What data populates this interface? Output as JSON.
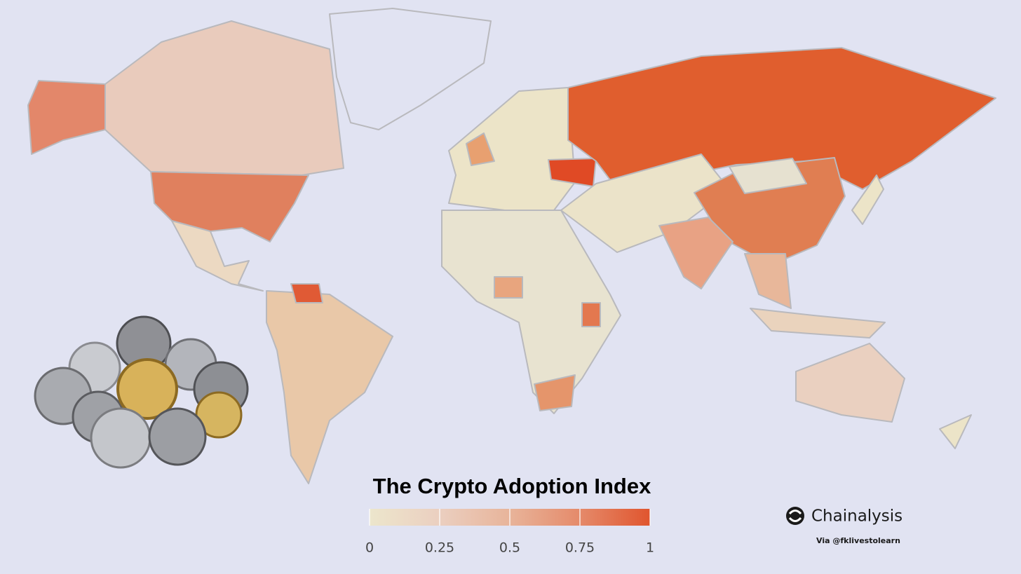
{
  "title": "The Crypto Adoption Index",
  "legend": {
    "range": [
      0,
      1
    ],
    "ticks": [
      0,
      0.25,
      0.5,
      0.75,
      1
    ],
    "colors": [
      "#ece6cc",
      "#ebcfc0",
      "#e8b49a",
      "#e58a6a",
      "#e0552e"
    ]
  },
  "brand": {
    "name": "Chainalysis",
    "credit": "Via @fklivestolearn"
  }
}
